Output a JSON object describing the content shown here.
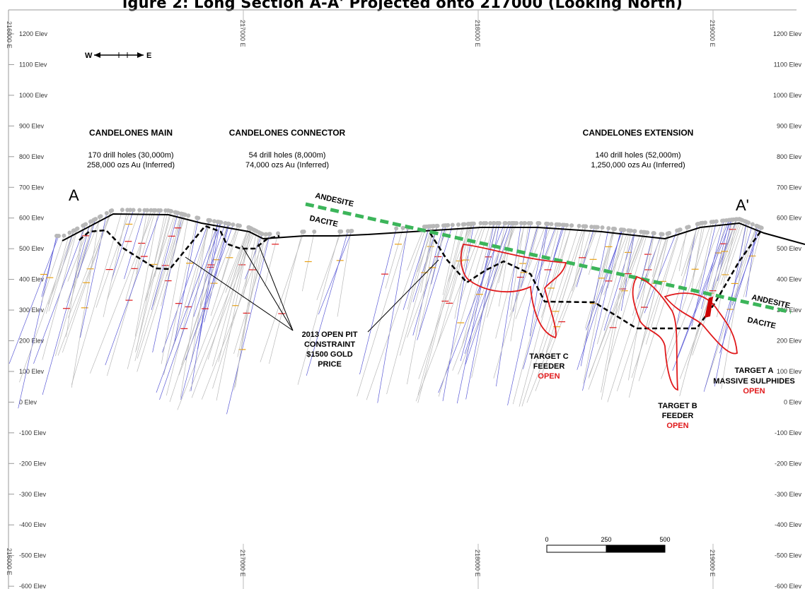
{
  "figure": {
    "title": "igure 2: Long Section A-A' Projected onto 217000 (Looking North)"
  },
  "elevation_axis": {
    "unit_suffix": "Elev",
    "labels": [
      "1200 Elev",
      "1100 Elev",
      "1000 Elev",
      "900 Elev",
      "800 Elev",
      "700 Elev",
      "600 Elev",
      "500 Elev",
      "400 Elev",
      "300 Elev",
      "200 Elev",
      "100 Elev",
      "0 Elev",
      "-100 Elev",
      "-200 Elev",
      "-300 Elev",
      "-400 Elev",
      "-500 Elev",
      "-600 Elev"
    ],
    "values": [
      1200,
      1100,
      1000,
      900,
      800,
      700,
      600,
      500,
      400,
      300,
      200,
      100,
      0,
      -100,
      -200,
      -300,
      -400,
      -500,
      -600
    ]
  },
  "easting_axis": {
    "labels": [
      "216000 E",
      "217000 E",
      "218000 E",
      "219000 E"
    ]
  },
  "orientation": {
    "west": "W",
    "east": "E"
  },
  "section_ends": {
    "start": "A",
    "end": "A'"
  },
  "deposits": [
    {
      "name": "CANDELONES MAIN",
      "holes": "170 drill holes (30,000m)",
      "resource": "258,000 ozs Au (Inferred)"
    },
    {
      "name": "CANDELONES CONNECTOR",
      "holes": "54 drill holes (8,000m)",
      "resource": "74,000 ozs Au (Inferred)"
    },
    {
      "name": "CANDELONES EXTENSION",
      "holes": "140 drill holes (52,000m)",
      "resource": "1,250,000 ozs Au (Inferred)"
    }
  ],
  "lithology": {
    "upper_left": "ANDESITE",
    "lower_left": "DACITE",
    "upper_right": "ANDESITE",
    "lower_right": "DACITE"
  },
  "pit_constraint": {
    "lines": [
      "2013 OPEN PIT",
      "CONSTRAINT",
      "$1500  GOLD",
      "PRICE"
    ]
  },
  "targets": [
    {
      "lines": [
        "TARGET C",
        "FEEDER"
      ],
      "status": "OPEN"
    },
    {
      "lines": [
        "TARGET B",
        "FEEDER"
      ],
      "status": "OPEN"
    },
    {
      "lines": [
        "TARGET A",
        "MASSIVE SULPHIDES"
      ],
      "status": "OPEN"
    }
  ],
  "scale_bar": {
    "ticks": [
      "0",
      "250",
      "500"
    ]
  },
  "colors": {
    "topography": "#000000",
    "pit_outline": "#000000",
    "contact": "#3cb55a",
    "targets": "#e0191b",
    "drillhole": "#b8b8b8",
    "grid": "#cccccc",
    "open_text": "#e0191b"
  }
}
